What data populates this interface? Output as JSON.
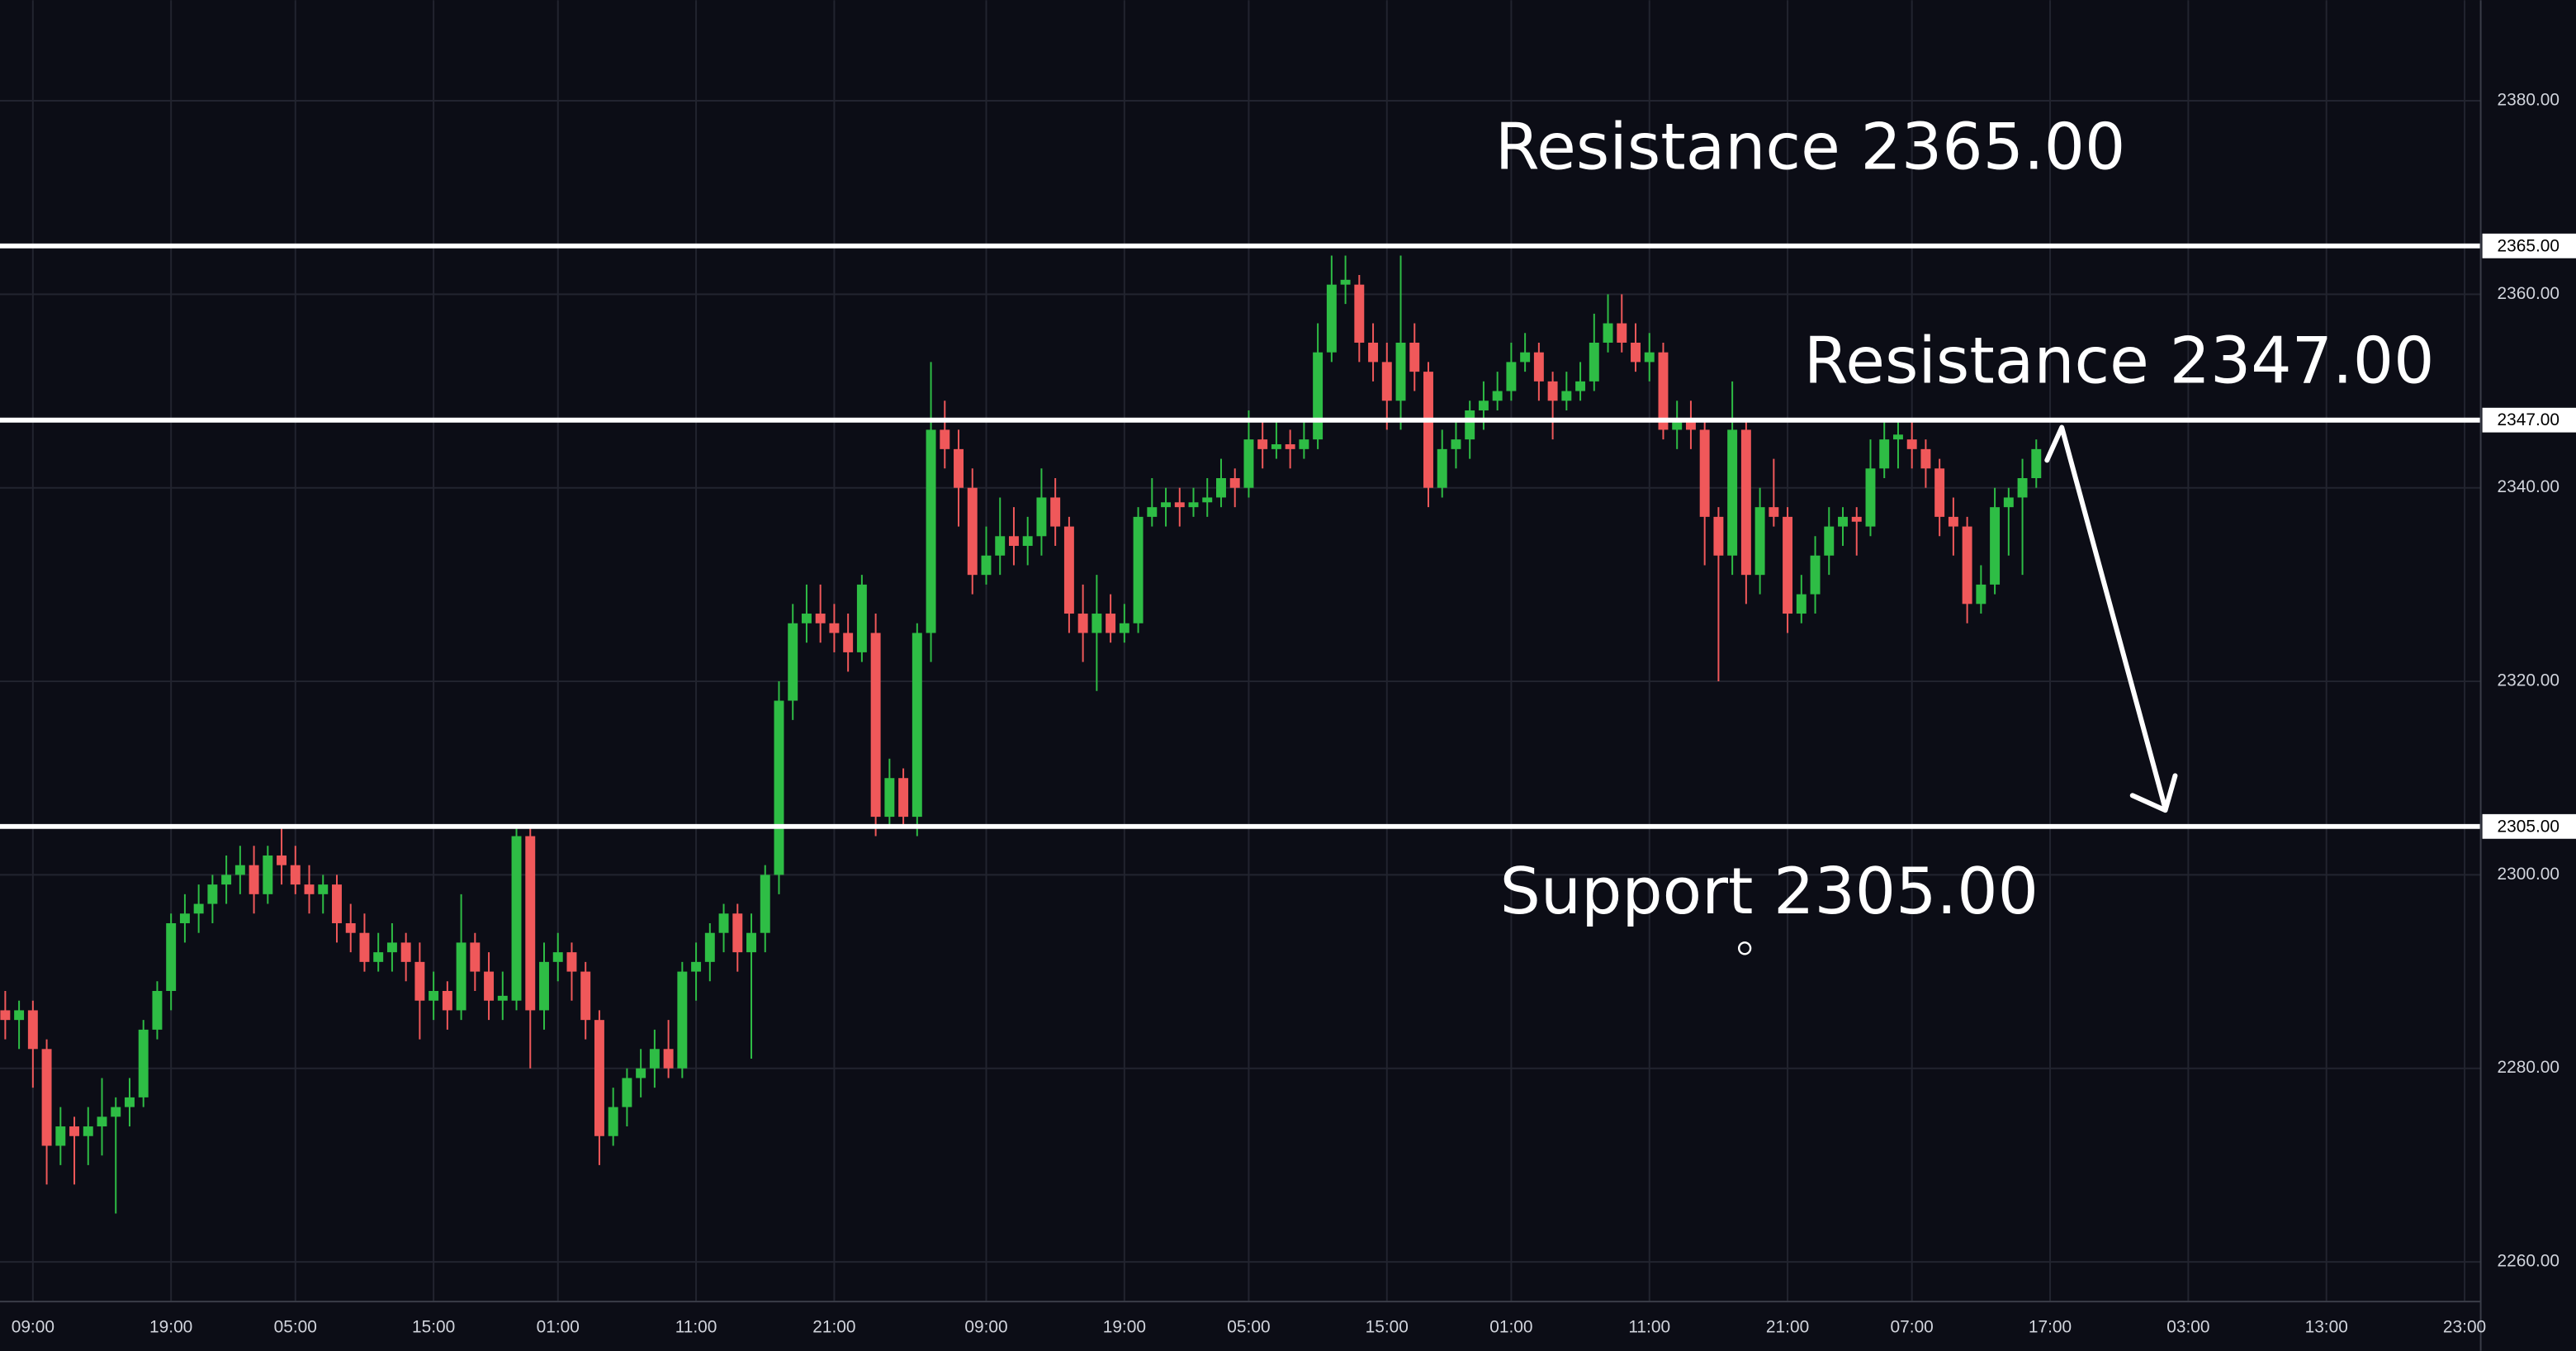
{
  "chart_data": {
    "type": "candlestick",
    "categories": [
      null,
      null,
      "09:00",
      null,
      null,
      null,
      null,
      null,
      null,
      null,
      null,
      null,
      "19:00",
      null,
      null,
      null,
      null,
      null,
      null,
      null,
      null,
      "05:00",
      null,
      null,
      null,
      null,
      null,
      null,
      null,
      null,
      null,
      "15:00",
      null,
      null,
      null,
      null,
      null,
      null,
      null,
      null,
      "01:00",
      null,
      null,
      null,
      null,
      null,
      null,
      null,
      null,
      null,
      "11:00",
      null,
      null,
      null,
      null,
      null,
      null,
      null,
      null,
      null,
      "21:00",
      null,
      null,
      null,
      null,
      null,
      null,
      null,
      null,
      null,
      null,
      "09:00",
      null,
      null,
      null,
      null,
      null,
      null,
      null,
      null,
      null,
      "19:00",
      null,
      null,
      null,
      null,
      null,
      null,
      null,
      null,
      "05:00",
      null,
      null,
      null,
      null,
      null,
      null,
      null,
      null,
      null,
      "15:00",
      null,
      null,
      null,
      null,
      null,
      null,
      null,
      null,
      "01:00",
      null,
      null,
      null,
      null,
      null,
      null,
      null,
      null,
      null,
      "11:00",
      null,
      null,
      null,
      null,
      null,
      null,
      null,
      null,
      null,
      "21:00",
      null,
      null,
      null,
      null,
      null,
      null,
      null,
      null,
      "07:00",
      null,
      null,
      null,
      null,
      null,
      null,
      null,
      null,
      null,
      "17:00",
      null,
      null,
      null,
      null,
      null,
      null,
      null,
      null,
      null,
      "03:00",
      null,
      null,
      null,
      null,
      null,
      null,
      null,
      null,
      null,
      "13:00",
      null,
      null,
      null,
      null,
      null,
      null,
      null,
      null,
      null,
      "23:00",
      null
    ],
    "candles": [
      [
        2286,
        2288,
        2283,
        2285
      ],
      [
        2285,
        2287,
        2282,
        2286
      ],
      [
        2286,
        2287,
        2278,
        2282
      ],
      [
        2282,
        2283,
        2268,
        2272
      ],
      [
        2272,
        2276,
        2270,
        2274
      ],
      [
        2274,
        2275,
        2268,
        2273
      ],
      [
        2273,
        2276,
        2270,
        2274
      ],
      [
        2274,
        2279,
        2271,
        2275
      ],
      [
        2275,
        2277,
        2265,
        2276
      ],
      [
        2276,
        2279,
        2274,
        2277
      ],
      [
        2277,
        2285,
        2276,
        2284
      ],
      [
        2284,
        2289,
        2283,
        2288
      ],
      [
        2288,
        2296,
        2286,
        2295
      ],
      [
        2295,
        2298,
        2293,
        2296
      ],
      [
        2296,
        2299,
        2294,
        2297
      ],
      [
        2297,
        2300,
        2295,
        2299
      ],
      [
        2299,
        2302,
        2297,
        2300
      ],
      [
        2300,
        2303,
        2298,
        2301
      ],
      [
        2301,
        2303,
        2296,
        2298
      ],
      [
        2298,
        2303,
        2297,
        2302
      ],
      [
        2302,
        2305,
        2299,
        2301
      ],
      [
        2301,
        2303,
        2298,
        2299
      ],
      [
        2299,
        2301,
        2296,
        2298
      ],
      [
        2298,
        2300,
        2296,
        2299
      ],
      [
        2299,
        2300,
        2293,
        2295
      ],
      [
        2295,
        2297,
        2292,
        2294
      ],
      [
        2294,
        2296,
        2290,
        2291
      ],
      [
        2291,
        2294,
        2290,
        2292
      ],
      [
        2292,
        2295,
        2290,
        2293
      ],
      [
        2293,
        2294,
        2289,
        2291
      ],
      [
        2291,
        2293,
        2283,
        2287
      ],
      [
        2287,
        2290,
        2285,
        2288
      ],
      [
        2288,
        2289,
        2284,
        2286
      ],
      [
        2286,
        2298,
        2285,
        2293
      ],
      [
        2293,
        2294,
        2288,
        2290
      ],
      [
        2290,
        2292,
        2285,
        2287
      ],
      [
        2287,
        2290,
        2285,
        2287.5
      ],
      [
        2287,
        2305,
        2286,
        2304
      ],
      [
        2304,
        2305,
        2280,
        2286
      ],
      [
        2286,
        2293,
        2284,
        2291
      ],
      [
        2291,
        2294,
        2289,
        2292
      ],
      [
        2292,
        2293,
        2287,
        2290
      ],
      [
        2290,
        2291,
        2283,
        2285
      ],
      [
        2285,
        2286,
        2270,
        2273
      ],
      [
        2273,
        2278,
        2272,
        2276
      ],
      [
        2276,
        2280,
        2274,
        2279
      ],
      [
        2279,
        2282,
        2277,
        2280
      ],
      [
        2280,
        2284,
        2278,
        2282
      ],
      [
        2282,
        2285,
        2279,
        2280
      ],
      [
        2280,
        2291,
        2279,
        2290
      ],
      [
        2290,
        2293,
        2287,
        2291
      ],
      [
        2291,
        2295,
        2289,
        2294
      ],
      [
        2294,
        2297,
        2292,
        2296
      ],
      [
        2296,
        2297,
        2290,
        2292
      ],
      [
        2292,
        2296,
        2281,
        2294
      ],
      [
        2294,
        2301,
        2292,
        2300
      ],
      [
        2300,
        2320,
        2298,
        2318
      ],
      [
        2318,
        2328,
        2316,
        2326
      ],
      [
        2326,
        2330,
        2324,
        2327
      ],
      [
        2327,
        2330,
        2324,
        2326
      ],
      [
        2326,
        2328,
        2323,
        2325
      ],
      [
        2325,
        2327,
        2321,
        2323
      ],
      [
        2323,
        2331,
        2322,
        2330
      ],
      [
        2325,
        2327,
        2304,
        2306
      ],
      [
        2306,
        2312,
        2305,
        2310
      ],
      [
        2310,
        2311,
        2305,
        2306
      ],
      [
        2306,
        2326,
        2304,
        2325
      ],
      [
        2325,
        2353,
        2322,
        2346
      ],
      [
        2346,
        2349,
        2342,
        2344
      ],
      [
        2344,
        2346,
        2336,
        2340
      ],
      [
        2340,
        2342,
        2329,
        2331
      ],
      [
        2331,
        2336,
        2330,
        2333
      ],
      [
        2333,
        2339,
        2331,
        2335
      ],
      [
        2335,
        2338,
        2332,
        2334
      ],
      [
        2334,
        2337,
        2332,
        2335
      ],
      [
        2335,
        2342,
        2333,
        2339
      ],
      [
        2339,
        2341,
        2334,
        2336
      ],
      [
        2336,
        2337,
        2325,
        2327
      ],
      [
        2327,
        2330,
        2322,
        2325
      ],
      [
        2325,
        2331,
        2319,
        2327
      ],
      [
        2327,
        2329,
        2324,
        2325
      ],
      [
        2325,
        2328,
        2324,
        2326
      ],
      [
        2326,
        2338,
        2325,
        2337
      ],
      [
        2337,
        2341,
        2336,
        2338
      ],
      [
        2338,
        2340,
        2336,
        2338.5
      ],
      [
        2338.5,
        2340,
        2336,
        2338
      ],
      [
        2338,
        2340,
        2337,
        2338.5
      ],
      [
        2338.5,
        2341,
        2337,
        2339
      ],
      [
        2339,
        2343,
        2338,
        2341
      ],
      [
        2341,
        2342,
        2338,
        2340
      ],
      [
        2340,
        2348,
        2339,
        2345
      ],
      [
        2345,
        2347,
        2342,
        2344
      ],
      [
        2344,
        2347,
        2343,
        2344.5
      ],
      [
        2344.5,
        2346,
        2342,
        2344
      ],
      [
        2344,
        2347,
        2343,
        2345
      ],
      [
        2345,
        2357,
        2344,
        2354
      ],
      [
        2354,
        2364,
        2353,
        2361
      ],
      [
        2361,
        2364,
        2359,
        2361.5
      ],
      [
        2361,
        2362,
        2353,
        2355
      ],
      [
        2355,
        2357,
        2351,
        2353
      ],
      [
        2353,
        2355,
        2346,
        2349
      ],
      [
        2349,
        2364,
        2346,
        2355
      ],
      [
        2355,
        2357,
        2350,
        2352
      ],
      [
        2352,
        2353,
        2338,
        2340
      ],
      [
        2340,
        2346,
        2339,
        2344
      ],
      [
        2344,
        2347,
        2342,
        2345
      ],
      [
        2345,
        2349,
        2343,
        2348
      ],
      [
        2348,
        2351,
        2346,
        2349
      ],
      [
        2349,
        2352,
        2348,
        2350
      ],
      [
        2350,
        2355,
        2349,
        2353
      ],
      [
        2353,
        2356,
        2352,
        2354
      ],
      [
        2354,
        2355,
        2349,
        2351
      ],
      [
        2351,
        2352,
        2345,
        2349
      ],
      [
        2349,
        2352,
        2348,
        2350
      ],
      [
        2350,
        2353,
        2349,
        2351
      ],
      [
        2351,
        2358,
        2350,
        2355
      ],
      [
        2355,
        2360,
        2354,
        2357
      ],
      [
        2357,
        2360,
        2354,
        2355
      ],
      [
        2355,
        2357,
        2352,
        2353
      ],
      [
        2353,
        2356,
        2351,
        2354
      ],
      [
        2354,
        2355,
        2345,
        2346
      ],
      [
        2346,
        2349,
        2344,
        2347
      ],
      [
        2347,
        2349,
        2344,
        2346
      ],
      [
        2346,
        2347,
        2332,
        2337
      ],
      [
        2337,
        2338,
        2320,
        2333
      ],
      [
        2333,
        2351,
        2331,
        2346
      ],
      [
        2346,
        2347,
        2328,
        2331
      ],
      [
        2331,
        2340,
        2329,
        2338
      ],
      [
        2338,
        2343,
        2336,
        2337
      ],
      [
        2337,
        2338,
        2325,
        2327
      ],
      [
        2327,
        2331,
        2326,
        2329
      ],
      [
        2329,
        2335,
        2327,
        2333
      ],
      [
        2333,
        2338,
        2331,
        2336
      ],
      [
        2336,
        2338,
        2334,
        2337
      ],
      [
        2337,
        2338,
        2333,
        2336.5
      ],
      [
        2336,
        2345,
        2335,
        2342
      ],
      [
        2342,
        2347,
        2341,
        2345
      ],
      [
        2345,
        2347,
        2342,
        2345.5
      ],
      [
        2345,
        2347,
        2342,
        2344
      ],
      [
        2344,
        2345,
        2340,
        2342
      ],
      [
        2342,
        2343,
        2335,
        2337
      ],
      [
        2337,
        2339,
        2333,
        2336
      ],
      [
        2336,
        2337,
        2326,
        2328
      ],
      [
        2328,
        2332,
        2327,
        2330
      ],
      [
        2330,
        2340,
        2329,
        2338
      ],
      [
        2338,
        2340,
        2333,
        2339
      ],
      [
        2339,
        2343,
        2331,
        2341
      ],
      [
        2341,
        2345,
        2340,
        2344
      ],
      null,
      null,
      null,
      null,
      null,
      null,
      null,
      null,
      null,
      null,
      null,
      null,
      null,
      null,
      null,
      null,
      null,
      null,
      null,
      null,
      null,
      null,
      null,
      null,
      null,
      null,
      null,
      null,
      null,
      null,
      null,
      null
    ],
    "up_color": "#2ebd45",
    "down_color": "#f0585a",
    "ylim": [
      2255.9,
      2390.4
    ],
    "yticks": [
      {
        "value": 2260,
        "label": "2260.00"
      },
      {
        "value": 2280,
        "label": "2280.00"
      },
      {
        "value": 2300,
        "label": "2300.00"
      },
      {
        "value": 2320,
        "label": "2320.00"
      },
      {
        "value": 2340,
        "label": "2340.00"
      },
      {
        "value": 2360,
        "label": "2360.00"
      },
      {
        "value": 2380,
        "label": "2380.00"
      }
    ],
    "levels": [
      {
        "value": 2365,
        "label": "2365.00",
        "annotation": "Resistance 2365.00"
      },
      {
        "value": 2347,
        "label": "2347.00",
        "annotation": "Resistance 2347.00"
      },
      {
        "value": 2305,
        "label": "2305.00",
        "annotation": "Support 2305.00"
      }
    ],
    "grid": true
  }
}
